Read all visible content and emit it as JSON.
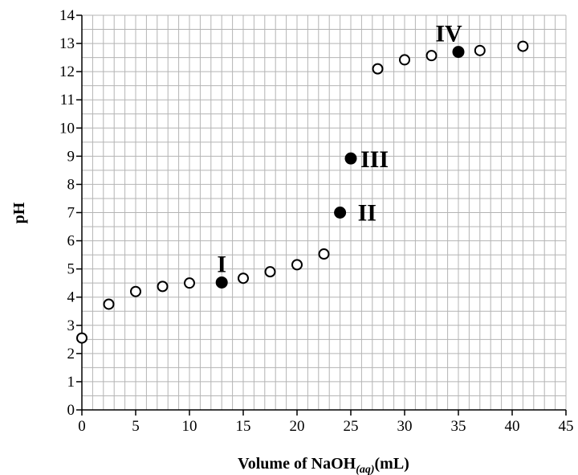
{
  "chart_data": {
    "type": "scatter",
    "xlabel": "Volume of NaOH",
    "xlabel_subscript": "(aq)",
    "xlabel_suffix": "(mL)",
    "ylabel": "pH",
    "xlim": [
      0,
      45
    ],
    "ylim": [
      0,
      14
    ],
    "x_ticks": [
      "0",
      "5",
      "10",
      "15",
      "20",
      "25",
      "30",
      "35",
      "40",
      "45"
    ],
    "y_ticks": [
      "0",
      "1",
      "2",
      "3",
      "4",
      "5",
      "6",
      "7",
      "8",
      "9",
      "10",
      "11",
      "12",
      "13",
      "14"
    ],
    "grid": true,
    "series": [
      {
        "marker": "open-circle",
        "points": [
          {
            "x": 0,
            "y": 2.55
          },
          {
            "x": 2.5,
            "y": 3.75
          },
          {
            "x": 5,
            "y": 4.2
          },
          {
            "x": 7.5,
            "y": 4.38
          },
          {
            "x": 10,
            "y": 4.5
          },
          {
            "x": 15,
            "y": 4.67
          },
          {
            "x": 17.5,
            "y": 4.9
          },
          {
            "x": 20,
            "y": 5.15
          },
          {
            "x": 22.5,
            "y": 5.53
          },
          {
            "x": 27.5,
            "y": 12.1
          },
          {
            "x": 30,
            "y": 12.42
          },
          {
            "x": 32.5,
            "y": 12.57
          },
          {
            "x": 37,
            "y": 12.75
          },
          {
            "x": 41,
            "y": 12.9
          }
        ]
      },
      {
        "marker": "filled-circle",
        "points": [
          {
            "x": 13,
            "y": 4.52,
            "label": "I"
          },
          {
            "x": 24,
            "y": 7.0,
            "label": "II"
          },
          {
            "x": 25,
            "y": 8.92,
            "label": "III"
          },
          {
            "x": 35,
            "y": 12.7,
            "label": "IV"
          }
        ]
      }
    ]
  }
}
